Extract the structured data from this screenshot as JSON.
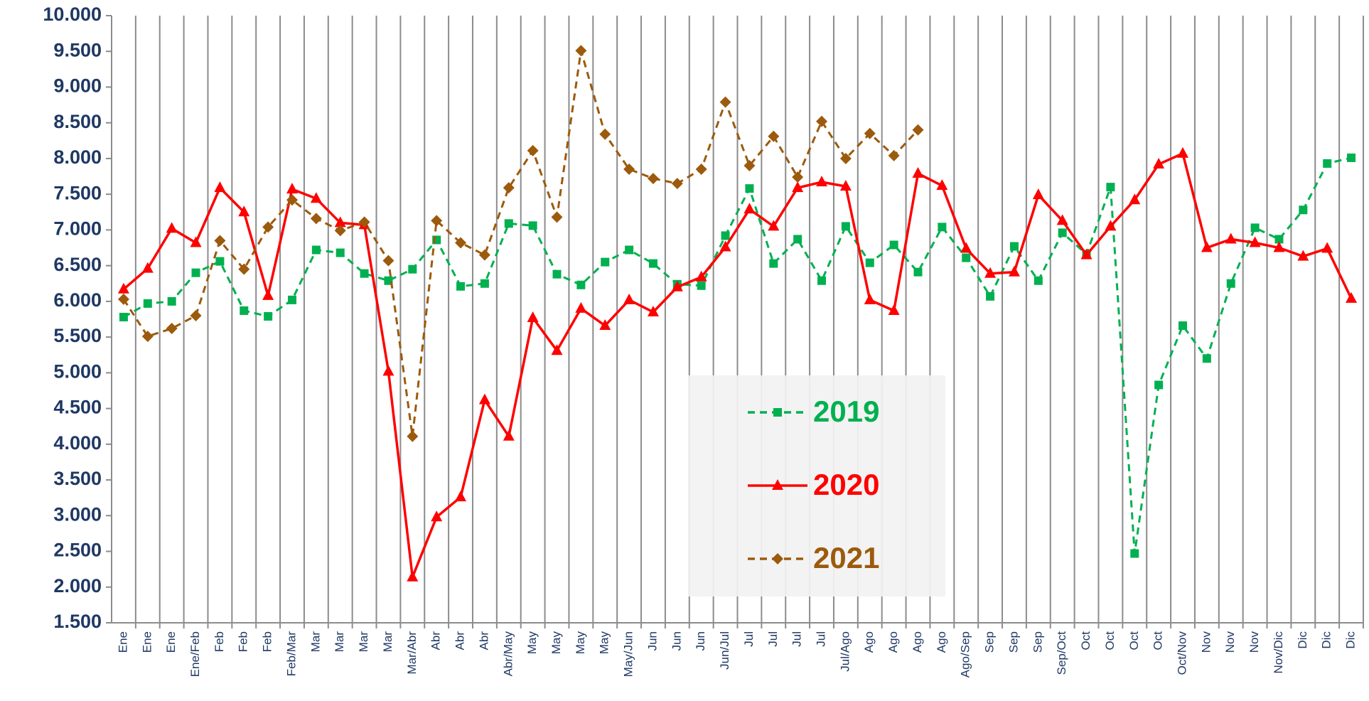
{
  "chart_data": {
    "type": "line",
    "categories": [
      "Ene",
      "Ene",
      "Ene",
      "Ene/Feb",
      "Feb",
      "Feb",
      "Feb",
      "Feb/Mar",
      "Mar",
      "Mar",
      "Mar",
      "Mar",
      "Mar/Abr",
      "Abr",
      "Abr",
      "Abr",
      "Abr/May",
      "May",
      "May",
      "May",
      "May",
      "May/Jun",
      "Jun",
      "Jun",
      "Jun",
      "Jun/Jul",
      "Jul",
      "Jul",
      "Jul",
      "Jul",
      "Jul/Ago",
      "Ago",
      "Ago",
      "Ago",
      "Ago",
      "Ago/Sep",
      "Sep",
      "Sep",
      "Sep",
      "Sep/Oct",
      "Oct",
      "Oct",
      "Oct",
      "Oct",
      "Oct/Nov",
      "Nov",
      "Nov",
      "Nov",
      "Nov/Dic",
      "Dic",
      "Dic",
      "Dic"
    ],
    "series": [
      {
        "name": "2019",
        "color": "#00b050",
        "marker": "square",
        "dashed": true,
        "values": [
          5780,
          5970,
          6000,
          6400,
          6560,
          5870,
          5790,
          6020,
          6720,
          6680,
          6390,
          6290,
          6450,
          6860,
          6210,
          6250,
          7090,
          7060,
          6380,
          6230,
          6550,
          6720,
          6530,
          6240,
          6220,
          6920,
          7580,
          6530,
          6870,
          6290,
          7050,
          6540,
          6790,
          6410,
          7040,
          6610,
          6070,
          6770,
          6290,
          6960,
          6660,
          7600,
          2470,
          4830,
          5660,
          5200,
          6250,
          7030,
          6870,
          7280,
          7930,
          8010
        ]
      },
      {
        "name": "2020",
        "color": "#ff0000",
        "marker": "triangle",
        "dashed": false,
        "values": [
          6170,
          6460,
          7020,
          6820,
          7590,
          7250,
          6080,
          7570,
          7440,
          7100,
          7070,
          5020,
          2140,
          2980,
          3260,
          4620,
          4110,
          5770,
          5310,
          5900,
          5660,
          6020,
          5850,
          6200,
          6340,
          6760,
          7290,
          7050,
          7590,
          7670,
          7610,
          6020,
          5870,
          7790,
          7620,
          6740,
          6390,
          6410,
          7490,
          7130,
          6650,
          7050,
          7420,
          7920,
          8070,
          6750,
          6870,
          6820,
          6750,
          6630,
          6740,
          6040
        ]
      },
      {
        "name": "2021",
        "color": "#9c5a0c",
        "marker": "diamond",
        "dashed": true,
        "values": [
          6030,
          5510,
          5620,
          5800,
          6850,
          6450,
          7040,
          7420,
          7160,
          6990,
          7110,
          6570,
          4110,
          7130,
          6820,
          6650,
          7590,
          8110,
          7180,
          9510,
          8340,
          7850,
          7720,
          7650,
          7850,
          8790,
          7900,
          8310,
          7740,
          8520,
          8000,
          8350,
          8040,
          8400,
          null,
          null,
          null,
          null,
          null,
          null,
          null,
          null,
          null,
          null,
          null,
          null,
          null,
          null,
          null,
          null,
          null,
          null
        ]
      }
    ],
    "ylim": [
      1500,
      10000
    ],
    "yticks": [
      {
        "value": 1500,
        "label": "1.500"
      },
      {
        "value": 2000,
        "label": "2.000"
      },
      {
        "value": 2500,
        "label": "2.500"
      },
      {
        "value": 3000,
        "label": "3.000"
      },
      {
        "value": 3500,
        "label": "3.500"
      },
      {
        "value": 4000,
        "label": "4.000"
      },
      {
        "value": 4500,
        "label": "4.500"
      },
      {
        "value": 5000,
        "label": "5.000"
      },
      {
        "value": 5500,
        "label": "5.500"
      },
      {
        "value": 6000,
        "label": "6.000"
      },
      {
        "value": 6500,
        "label": "6.500"
      },
      {
        "value": 7000,
        "label": "7.000"
      },
      {
        "value": 7500,
        "label": "7.500"
      },
      {
        "value": 8000,
        "label": "8.000"
      },
      {
        "value": 8500,
        "label": "8.500"
      },
      {
        "value": 9000,
        "label": "9.000"
      },
      {
        "value": 9500,
        "label": "9.500"
      },
      {
        "value": 10000,
        "label": "10.000"
      }
    ],
    "grid": true
  }
}
